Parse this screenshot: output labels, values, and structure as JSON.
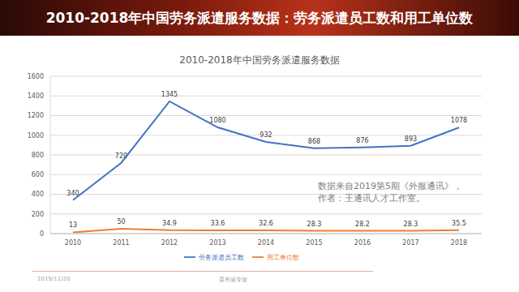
{
  "slide": {
    "title": "2010-2018年中国劳务派遣服务数据：劳务派遣员工数和用工单位数",
    "footer": [
      "2019/11/20",
      "聂有诚专版"
    ]
  },
  "chart_data": {
    "type": "line",
    "title": "2010-2018年中国劳务派遣服务数据",
    "categories": [
      "2010",
      "2011",
      "2012",
      "2013",
      "2014",
      "2015",
      "2016",
      "2017",
      "2018"
    ],
    "series": [
      {
        "name": "劳务派遣员工数",
        "color": "#4472c4",
        "values": [
          340,
          720,
          1345,
          1080,
          932,
          868,
          876,
          893,
          1078
        ]
      },
      {
        "name": "用工单位数",
        "color": "#ed7d31",
        "values": [
          13,
          50,
          34.9,
          33.6,
          32.6,
          28.3,
          28.2,
          28.3,
          35.5
        ]
      }
    ],
    "ylim": [
      0,
      1600
    ],
    "yticks": [
      0,
      200,
      400,
      600,
      800,
      1000,
      1200,
      1400,
      1600
    ],
    "grid": true,
    "legend": "bottom",
    "data_labels": true,
    "marker": "none",
    "annotations": [
      "数据来自2019第5期《外服通讯》，",
      "作者：王通讯人才工作室。"
    ]
  }
}
